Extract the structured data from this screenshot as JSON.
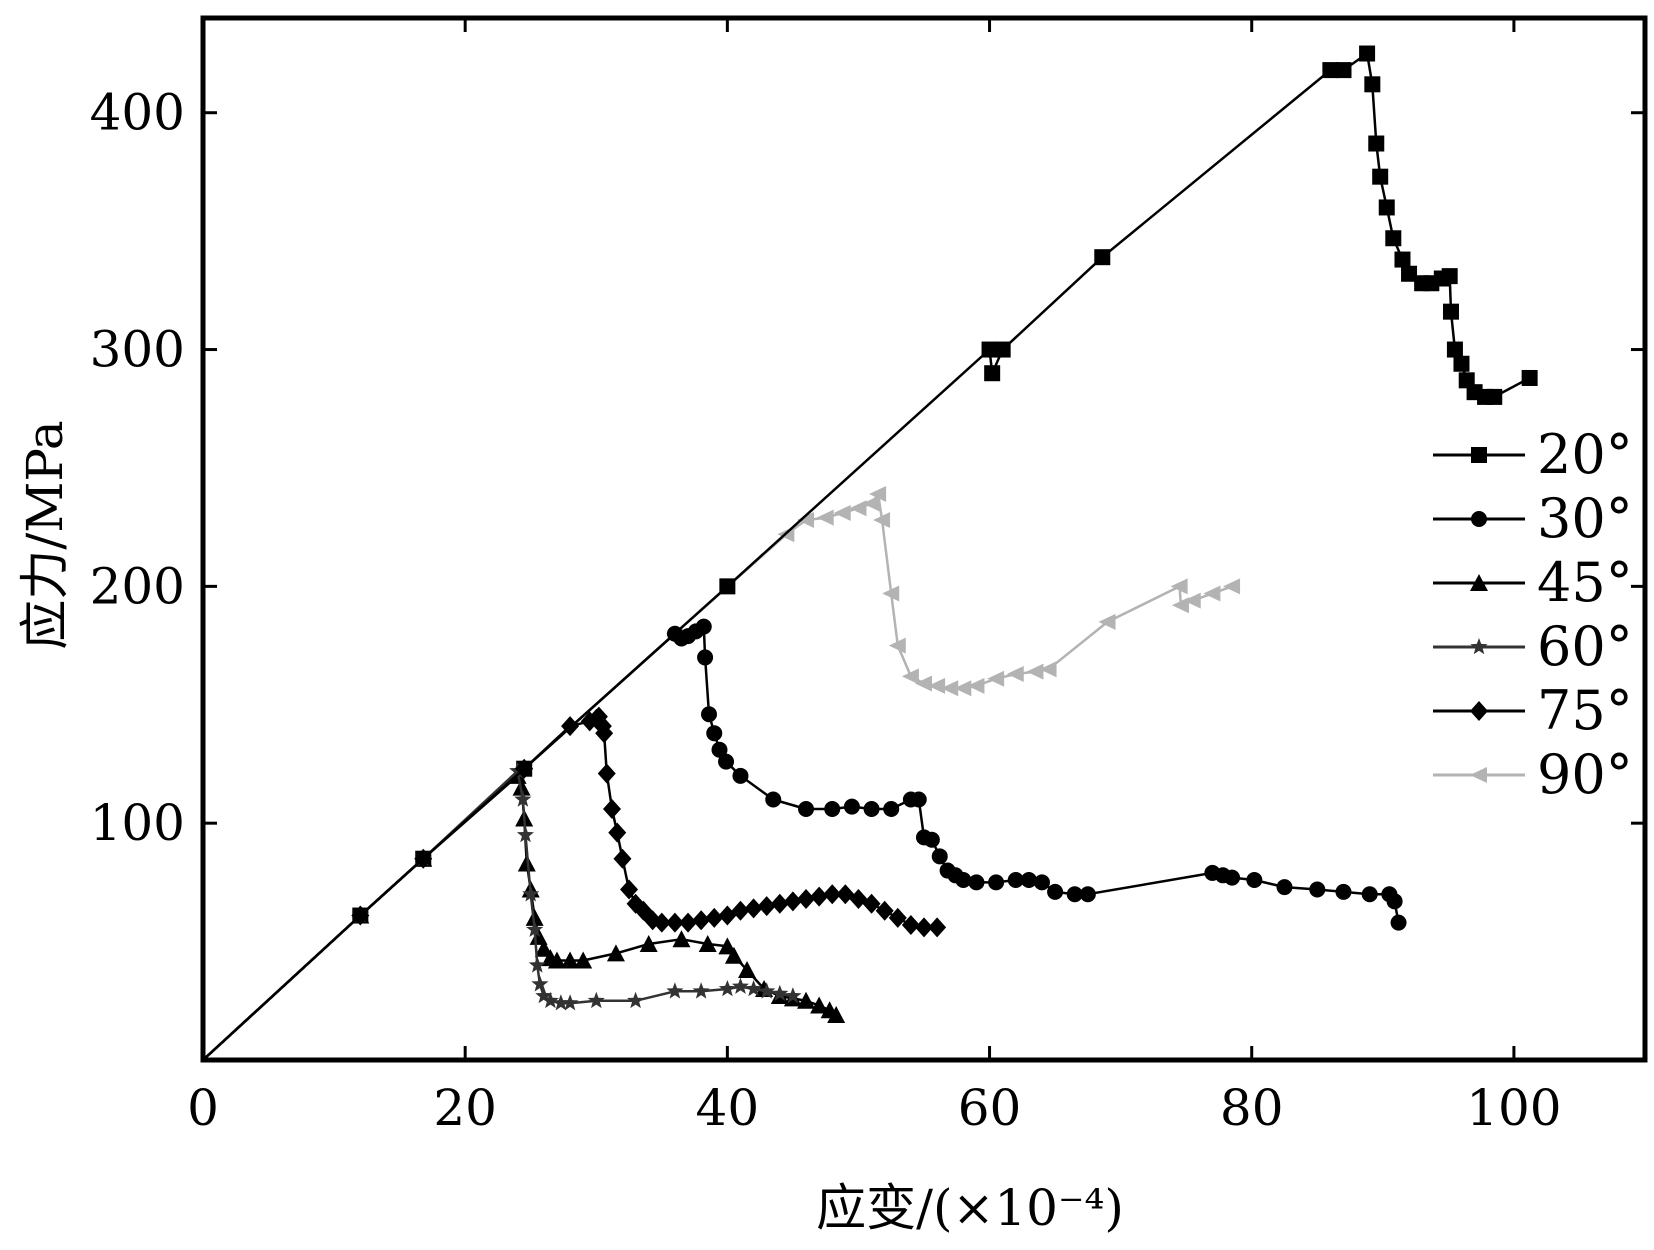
{
  "chart_data": {
    "type": "line",
    "title": "",
    "xlabel": "应变/(×10⁻⁴)",
    "ylabel": "应力/MPa",
    "xlim": [
      0,
      110
    ],
    "ylim": [
      0,
      440
    ],
    "x_ticks": [
      "0",
      "20",
      "40",
      "60",
      "80",
      "100"
    ],
    "x_tick_values": [
      0,
      20,
      40,
      60,
      80,
      100
    ],
    "y_ticks": [
      "100",
      "200",
      "300",
      "400"
    ],
    "y_tick_values": [
      100,
      200,
      300,
      400
    ],
    "grid": false,
    "legend_position": "right",
    "series": [
      {
        "name": "20°",
        "color": "#000000",
        "marker": "square",
        "points": [
          [
            0,
            0
          ],
          [
            12,
            61
          ],
          [
            16.8,
            85
          ],
          [
            24.5,
            123
          ],
          [
            40,
            200
          ],
          [
            60,
            300
          ],
          [
            60.2,
            290
          ],
          [
            61,
            300
          ],
          [
            68.6,
            339
          ],
          [
            86,
            418
          ],
          [
            87,
            418
          ],
          [
            88.8,
            425
          ],
          [
            89.2,
            412
          ],
          [
            89.5,
            387
          ],
          [
            89.8,
            373
          ],
          [
            90.3,
            360
          ],
          [
            90.8,
            347
          ],
          [
            91.5,
            338
          ],
          [
            92,
            332
          ],
          [
            93,
            328
          ],
          [
            93.7,
            328
          ],
          [
            94.5,
            330
          ],
          [
            95.1,
            331
          ],
          [
            95.2,
            316
          ],
          [
            95.5,
            300
          ],
          [
            96,
            294
          ],
          [
            96.4,
            287
          ],
          [
            97,
            282
          ],
          [
            97.8,
            280
          ],
          [
            98.5,
            280
          ],
          [
            101.2,
            288
          ]
        ]
      },
      {
        "name": "30°",
        "color": "#000000",
        "marker": "circle",
        "points": [
          [
            0,
            0
          ],
          [
            12,
            61
          ],
          [
            16.8,
            85
          ],
          [
            24.5,
            123
          ],
          [
            36,
            180
          ],
          [
            36.5,
            178
          ],
          [
            37,
            179
          ],
          [
            37.6,
            181
          ],
          [
            38.2,
            183
          ],
          [
            38.3,
            170
          ],
          [
            38.6,
            146
          ],
          [
            39,
            138
          ],
          [
            39.4,
            131
          ],
          [
            39.9,
            126
          ],
          [
            41,
            120
          ],
          [
            43.5,
            110
          ],
          [
            46,
            106
          ],
          [
            48,
            106
          ],
          [
            49.5,
            107
          ],
          [
            51,
            106
          ],
          [
            52.5,
            106
          ],
          [
            54,
            110
          ],
          [
            54.6,
            110
          ],
          [
            55,
            94
          ],
          [
            55.6,
            93
          ],
          [
            56.2,
            86
          ],
          [
            56.8,
            80
          ],
          [
            57.4,
            78
          ],
          [
            58,
            76
          ],
          [
            59,
            75
          ],
          [
            60.5,
            75
          ],
          [
            62,
            76
          ],
          [
            63,
            76
          ],
          [
            64,
            75
          ],
          [
            65,
            71
          ],
          [
            66.5,
            70
          ],
          [
            67.5,
            70
          ],
          [
            77,
            79
          ],
          [
            77.8,
            78
          ],
          [
            78.5,
            77
          ],
          [
            80.2,
            76
          ],
          [
            82.5,
            73
          ],
          [
            85,
            72
          ],
          [
            87,
            71
          ],
          [
            89,
            70
          ],
          [
            90.5,
            70
          ],
          [
            90.9,
            67
          ],
          [
            91.2,
            58
          ]
        ]
      },
      {
        "name": "45°",
        "color": "#000000",
        "marker": "triangle-up",
        "points": [
          [
            0,
            0
          ],
          [
            12,
            61
          ],
          [
            16.8,
            85
          ],
          [
            24,
            120
          ],
          [
            24.3,
            115
          ],
          [
            24.5,
            102
          ],
          [
            24.7,
            83
          ],
          [
            25,
            72
          ],
          [
            25.3,
            60
          ],
          [
            25.6,
            52
          ],
          [
            26,
            47
          ],
          [
            26.5,
            43
          ],
          [
            27,
            42
          ],
          [
            28,
            42
          ],
          [
            29,
            42
          ],
          [
            31.5,
            45
          ],
          [
            34,
            49
          ],
          [
            36.5,
            51
          ],
          [
            38.5,
            49
          ],
          [
            40,
            48
          ],
          [
            40.5,
            44
          ],
          [
            41.5,
            38
          ],
          [
            42.8,
            30
          ],
          [
            44,
            27
          ],
          [
            45,
            26
          ],
          [
            46,
            25
          ],
          [
            47,
            23
          ],
          [
            47.8,
            21
          ],
          [
            48.3,
            19
          ]
        ]
      },
      {
        "name": "60°",
        "color": "#333333",
        "marker": "star",
        "points": [
          [
            0,
            0
          ],
          [
            12,
            61
          ],
          [
            16.8,
            85
          ],
          [
            24,
            122
          ],
          [
            24.4,
            110
          ],
          [
            24.6,
            95
          ],
          [
            25,
            70
          ],
          [
            25.3,
            55
          ],
          [
            25.5,
            40
          ],
          [
            25.7,
            32
          ],
          [
            26,
            27
          ],
          [
            26.5,
            25
          ],
          [
            27.3,
            24
          ],
          [
            28,
            24
          ],
          [
            30,
            25
          ],
          [
            33,
            25
          ],
          [
            36,
            29
          ],
          [
            38,
            29
          ],
          [
            40,
            30
          ],
          [
            41,
            31
          ],
          [
            42,
            30
          ],
          [
            43,
            29
          ],
          [
            44,
            28
          ],
          [
            45,
            27
          ]
        ]
      },
      {
        "name": "75°",
        "color": "#000000",
        "marker": "diamond",
        "points": [
          [
            0,
            0
          ],
          [
            12,
            61
          ],
          [
            16.8,
            85
          ],
          [
            24.5,
            123
          ],
          [
            28,
            141
          ],
          [
            29.5,
            143
          ],
          [
            30,
            144
          ],
          [
            30.2,
            145
          ],
          [
            30.5,
            141
          ],
          [
            30.6,
            138
          ],
          [
            30.8,
            121
          ],
          [
            31.2,
            106
          ],
          [
            31.6,
            96
          ],
          [
            32,
            85
          ],
          [
            32.5,
            72
          ],
          [
            33,
            66
          ],
          [
            33.6,
            63
          ],
          [
            34.3,
            59
          ],
          [
            35,
            58
          ],
          [
            36,
            58
          ],
          [
            37,
            58
          ],
          [
            38,
            59
          ],
          [
            39,
            60
          ],
          [
            40,
            61
          ],
          [
            41,
            63
          ],
          [
            42,
            64
          ],
          [
            43,
            65
          ],
          [
            44,
            66
          ],
          [
            45,
            67
          ],
          [
            46,
            68
          ],
          [
            47,
            69
          ],
          [
            48,
            70
          ],
          [
            49,
            70
          ],
          [
            50,
            68
          ],
          [
            51,
            66
          ],
          [
            52,
            63
          ],
          [
            53,
            60
          ],
          [
            54,
            57
          ],
          [
            55,
            56
          ],
          [
            56,
            56
          ]
        ]
      },
      {
        "name": "90°",
        "color": "#b3b3b3",
        "marker": "triangle-left",
        "points": [
          [
            0,
            0
          ],
          [
            12,
            61
          ],
          [
            16.8,
            85
          ],
          [
            24.5,
            123
          ],
          [
            36,
            180
          ],
          [
            44.5,
            222
          ],
          [
            46,
            228
          ],
          [
            47.5,
            229
          ],
          [
            48.8,
            231
          ],
          [
            50,
            233
          ],
          [
            51,
            235
          ],
          [
            51.5,
            239
          ],
          [
            51.8,
            228
          ],
          [
            52.5,
            197
          ],
          [
            53,
            175
          ],
          [
            54,
            162
          ],
          [
            55,
            159
          ],
          [
            56,
            158
          ],
          [
            57,
            157
          ],
          [
            58,
            157
          ],
          [
            59,
            158
          ],
          [
            60.5,
            161
          ],
          [
            62,
            163
          ],
          [
            63.5,
            164
          ],
          [
            64.5,
            165
          ],
          [
            69,
            185
          ],
          [
            74.5,
            200
          ],
          [
            74.6,
            192
          ],
          [
            75.5,
            194
          ],
          [
            77,
            197
          ],
          [
            78.5,
            200
          ]
        ]
      }
    ]
  }
}
